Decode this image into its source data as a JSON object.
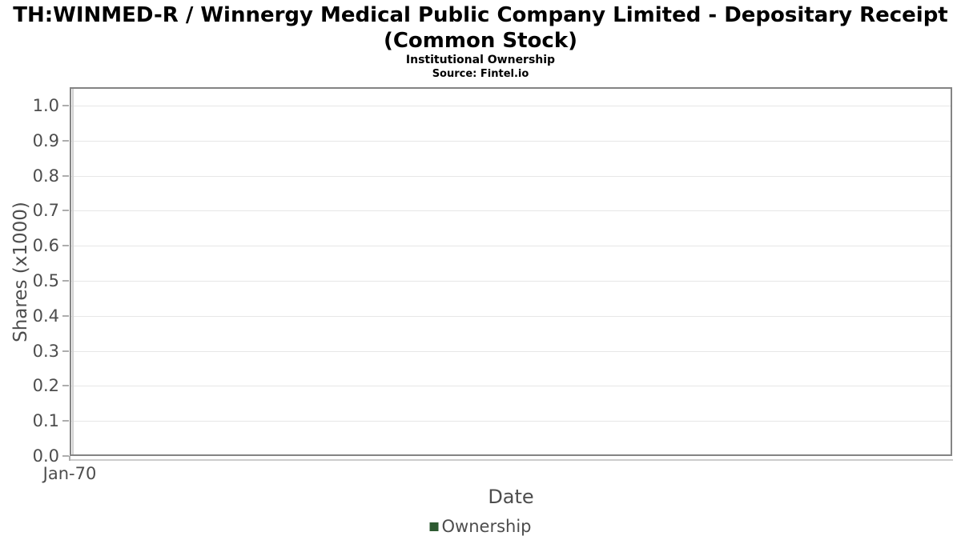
{
  "chart_data": {
    "type": "line",
    "title_lines": [
      "TH:WINMED-R / Winnergy Medical Public Company Limited - Depositary Receipt",
      "(Common Stock)"
    ],
    "title": "TH:WINMED-R / Winnergy Medical Public Company Limited - Depositary Receipt (Common Stock)",
    "subtitle": "Institutional Ownership",
    "source": "Source: Fintel.io",
    "xlabel": "Date",
    "ylabel": "Shares (x1000)",
    "x_ticks": [
      "Jan-70"
    ],
    "y_tick_labels": [
      "0.0",
      "0.1",
      "0.2",
      "0.3",
      "0.4",
      "0.5",
      "0.6",
      "0.7",
      "0.8",
      "0.9",
      "1.0"
    ],
    "ylim": [
      0.0,
      1.05
    ],
    "grid": true,
    "legend": {
      "position": "bottom",
      "entries": [
        {
          "label": "Ownership",
          "color": "#2d5a31"
        }
      ]
    },
    "series": [
      {
        "name": "Ownership",
        "color": "#2d5a31",
        "x": [],
        "values": []
      }
    ]
  },
  "colors": {
    "plot_border": "#848484",
    "gridline": "#e7e7e7",
    "axis_line": "#d0d0d0",
    "tick_mark": "#adadad",
    "axis_text": "#4d4d4d",
    "title_text": "#000000",
    "legend_green": "#2d5a31"
  }
}
